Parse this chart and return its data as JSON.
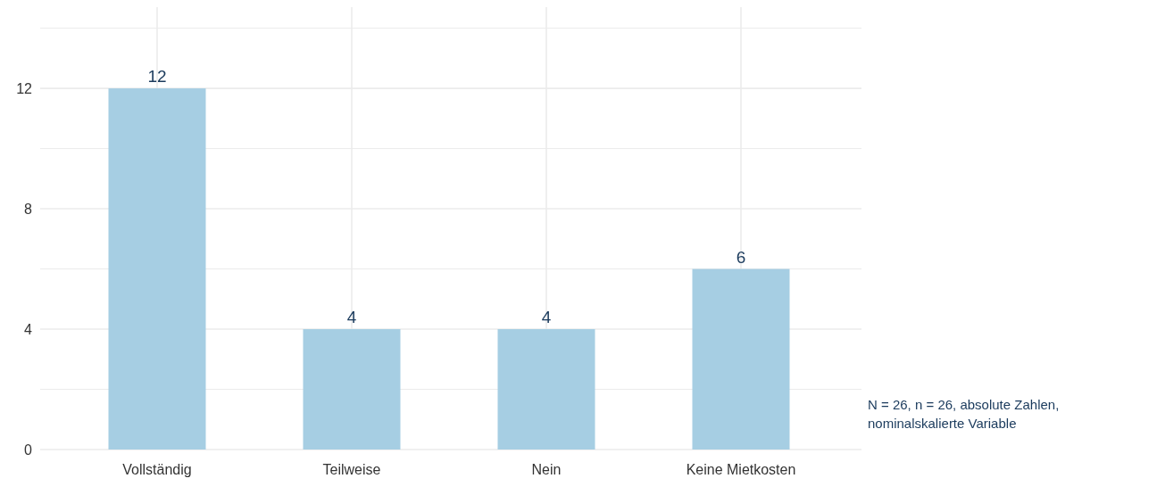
{
  "chart_data": {
    "type": "bar",
    "categories": [
      "Vollständig",
      "Teilweise",
      "Nein",
      "Keine Mietkosten"
    ],
    "values": [
      12,
      4,
      4,
      6
    ],
    "color": "#a6cee3",
    "ylim": [
      0,
      14.7
    ],
    "yticks": [
      0,
      {
        "value": 2,
        "label": null
      },
      4,
      {
        "value": 6,
        "label": null
      },
      8,
      {
        "value": 10,
        "label": null
      },
      12,
      {
        "value": 14,
        "label": null
      }
    ],
    "grid": true,
    "data_labels": true,
    "annotations": [
      "N = 26, n = 26, absolute Zahlen, nominalskalierte Variable"
    ]
  }
}
